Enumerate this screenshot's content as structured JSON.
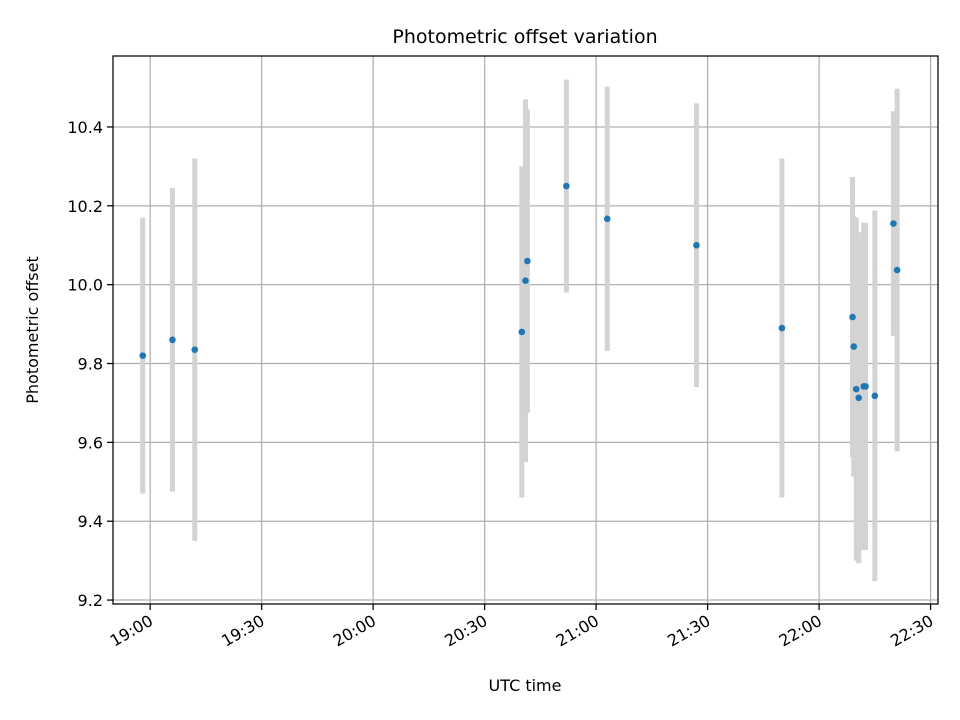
{
  "chart_data": {
    "type": "scatter",
    "title": "Photometric offset variation",
    "xlabel": "UTC time",
    "ylabel": "Photometric offset",
    "x_axis_kind": "time",
    "xlim": [
      "18:50",
      "22:32"
    ],
    "ylim": [
      9.19,
      10.58
    ],
    "x_ticks": [
      "19:00",
      "19:30",
      "20:00",
      "20:30",
      "21:00",
      "21:30",
      "22:00",
      "22:30"
    ],
    "y_ticks": [
      9.2,
      9.4,
      9.6,
      9.8,
      10.0,
      10.2,
      10.4
    ],
    "y_tick_labels": [
      "9.2",
      "9.4",
      "9.6",
      "9.8",
      "10.0",
      "10.2",
      "10.4"
    ],
    "grid": true,
    "colors": {
      "marker": "#1f77b4",
      "errorbar": "#d3d3d3",
      "grid": "#b0b0b0"
    },
    "points": [
      {
        "t": "18:58",
        "y": 9.82,
        "err": 0.35
      },
      {
        "t": "19:06",
        "y": 9.86,
        "err": 0.385
      },
      {
        "t": "19:12",
        "y": 9.835,
        "err": 0.485
      },
      {
        "t": "20:40",
        "y": 9.88,
        "err": 0.42
      },
      {
        "t": "20:41",
        "y": 10.01,
        "err": 0.46
      },
      {
        "t": "20:41:30",
        "y": 10.06,
        "err": 0.385
      },
      {
        "t": "20:52",
        "y": 10.25,
        "err": 0.27
      },
      {
        "t": "21:03",
        "y": 10.167,
        "err": 0.335
      },
      {
        "t": "21:27",
        "y": 10.1,
        "err": 0.36
      },
      {
        "t": "21:50",
        "y": 9.89,
        "err": 0.43
      },
      {
        "t": "22:09",
        "y": 9.918,
        "err": 0.355
      },
      {
        "t": "22:09:20",
        "y": 9.843,
        "err": 0.33
      },
      {
        "t": "22:10",
        "y": 9.735,
        "err": 0.435
      },
      {
        "t": "22:10:40",
        "y": 9.713,
        "err": 0.42
      },
      {
        "t": "22:12",
        "y": 9.742,
        "err": 0.415
      },
      {
        "t": "22:12:30",
        "y": 9.742,
        "err": 0.415
      },
      {
        "t": "22:15",
        "y": 9.718,
        "err": 0.47
      },
      {
        "t": "22:20",
        "y": 10.155,
        "err": 0.285
      },
      {
        "t": "22:21",
        "y": 10.037,
        "err": 0.46
      }
    ]
  }
}
